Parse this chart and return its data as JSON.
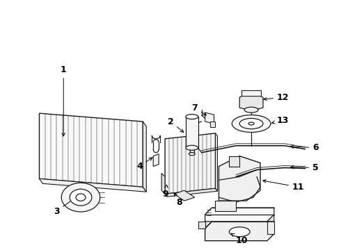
{
  "bg_color": "#ffffff",
  "line_color": "#1a1a1a",
  "label_color": "#000000",
  "figsize": [
    4.9,
    3.6
  ],
  "dpi": 100,
  "label_fontsize": 9,
  "lw": 0.9
}
